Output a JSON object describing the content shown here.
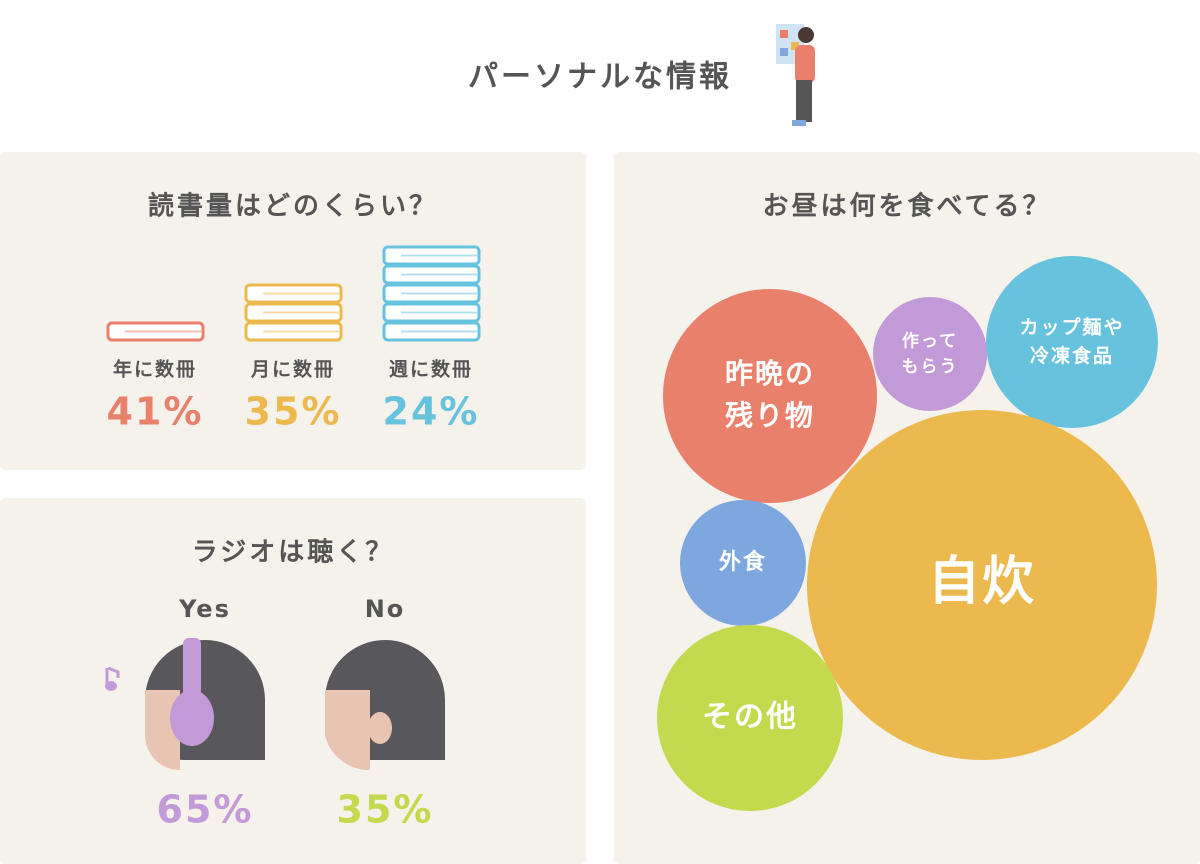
{
  "header": {
    "title": "パーソナルな情報"
  },
  "reading": {
    "title": "読書量はどのくらい？",
    "items": [
      {
        "label": "年に数冊",
        "value": "41%"
      },
      {
        "label": "月に数冊",
        "value": "35%"
      },
      {
        "label": "週に数冊",
        "value": "24%"
      }
    ]
  },
  "radio": {
    "title": "ラジオは聴く？",
    "items": [
      {
        "label": "Yes",
        "value": "65%"
      },
      {
        "label": "No",
        "value": "35%"
      }
    ]
  },
  "lunch": {
    "title": "お昼は何を食べてる？",
    "bubbles": [
      {
        "lines": [
          "昨晩の",
          "残り物"
        ]
      },
      {
        "lines": [
          "作って",
          "もらう"
        ]
      },
      {
        "lines": [
          "カップ麺や",
          "冷凍食品"
        ]
      },
      {
        "lines": [
          "自炊"
        ]
      },
      {
        "lines": [
          "外食"
        ]
      },
      {
        "lines": [
          "その他"
        ]
      }
    ]
  }
}
